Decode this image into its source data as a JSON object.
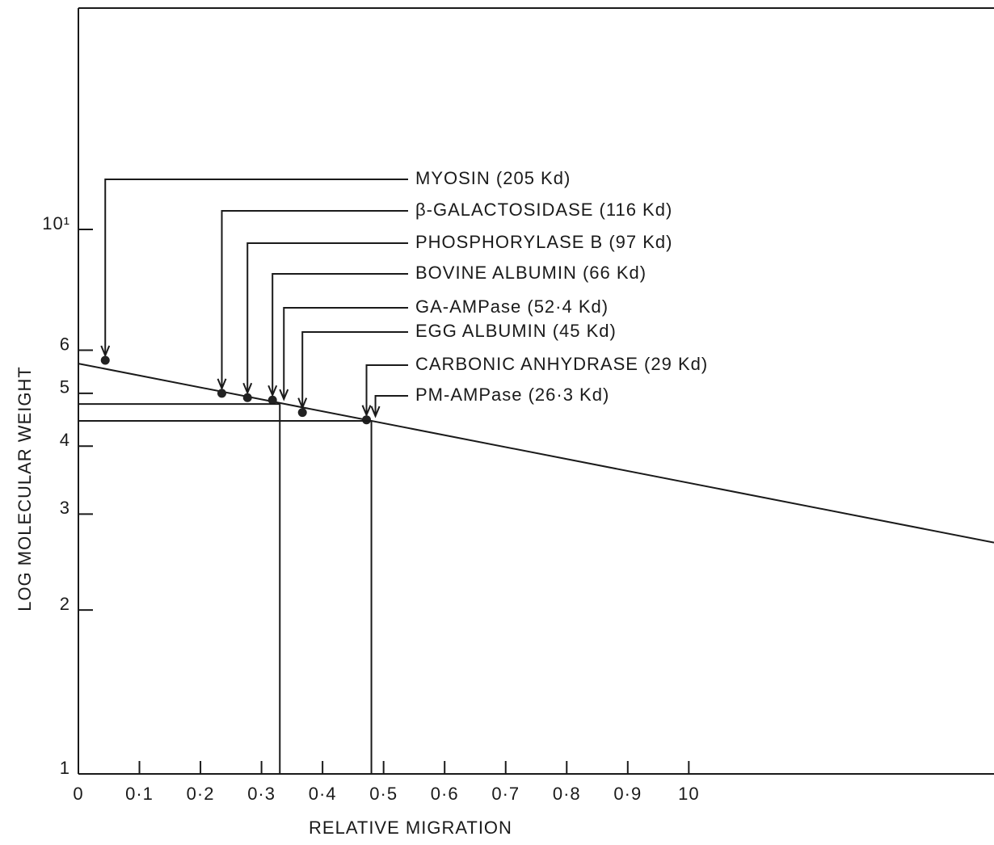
{
  "chart_data": {
    "type": "semilog-scatter",
    "x_label": "RELATIVE MIGRATION",
    "y_label": "LOG MOLECULAR WEIGHT",
    "xlim": [
      0,
      1.5
    ],
    "ylim": [
      1,
      25.5
    ],
    "y_scale": "log",
    "xticks": [
      0,
      {
        "value": 0.1,
        "label": "0·1"
      },
      {
        "value": 0.2,
        "label": "0·2"
      },
      {
        "value": 0.3,
        "label": "0·3"
      },
      {
        "value": 0.4,
        "label": "0·4"
      },
      {
        "value": 0.5,
        "label": "0·5"
      },
      {
        "value": 0.6,
        "label": "0·6"
      },
      {
        "value": 0.7,
        "label": "0·7"
      },
      {
        "value": 0.8,
        "label": "0·8"
      },
      {
        "value": 0.9,
        "label": "0·9"
      },
      {
        "value": 1.0,
        "label": "10"
      }
    ],
    "yticks": [
      1,
      2,
      3,
      4,
      5,
      6,
      {
        "value": 10,
        "label": "10¹"
      }
    ],
    "color": "#222222",
    "fit_line": {
      "x": [
        0,
        1.5
      ],
      "values": [
        5.67,
        2.66
      ]
    },
    "points": [
      {
        "label": "MYOSIN (205 Kd)",
        "x": 0.044,
        "y": 5.75,
        "marker": "dot",
        "drop_lines": false
      },
      {
        "label": "β-GALACTOSIDASE (116 Kd)",
        "x": 0.235,
        "y": 5.0,
        "marker": "dot",
        "drop_lines": false
      },
      {
        "label": "PHOSPHORYLASE B (97 Kd)",
        "x": 0.277,
        "y": 4.91,
        "marker": "dot",
        "drop_lines": false
      },
      {
        "label": "BOVINE ALBUMIN (66 Kd)",
        "x": 0.318,
        "y": 4.86,
        "marker": "dot",
        "drop_lines": false
      },
      {
        "label": "GA-AMPase (52·4 Kd)",
        "x": 0.33,
        "y": 4.78,
        "marker": "none",
        "drop_lines": true
      },
      {
        "label": "EGG ALBUMIN (45 Kd)",
        "x": 0.367,
        "y": 4.61,
        "marker": "dot",
        "drop_lines": false
      },
      {
        "label": "CARBONIC ANHYDRASE (29 Kd)",
        "x": 0.472,
        "y": 4.47,
        "marker": "dot",
        "drop_lines": false
      },
      {
        "label": "PM-AMPase (26·3 Kd)",
        "x": 0.48,
        "y": 4.45,
        "marker": "none",
        "drop_lines": true
      }
    ]
  }
}
